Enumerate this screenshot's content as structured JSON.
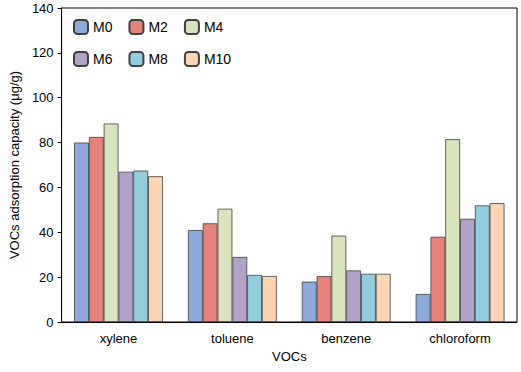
{
  "chart_data": {
    "type": "bar",
    "x_label": "VOCs",
    "y_label": "VOCs adsorption capacity (μg/g)",
    "categories": [
      "xylene",
      "toluene",
      "benzene",
      "chloroform"
    ],
    "series": [
      {
        "name": "M0",
        "color": "#8eaadb",
        "values": [
          80,
          41,
          18,
          12.5
        ]
      },
      {
        "name": "M2",
        "color": "#e6827c",
        "values": [
          82.5,
          44,
          20.5,
          38
        ]
      },
      {
        "name": "M4",
        "color": "#d7e4bd",
        "values": [
          88.5,
          50.5,
          38.5,
          81.5
        ]
      },
      {
        "name": "M6",
        "color": "#b3a2c7",
        "values": [
          67,
          29,
          23,
          46
        ]
      },
      {
        "name": "M8",
        "color": "#93cddd",
        "values": [
          67.5,
          21,
          21.5,
          52
        ]
      },
      {
        "name": "M10",
        "color": "#fcd5b5",
        "values": [
          65,
          20.5,
          21.5,
          53
        ]
      }
    ],
    "ylim": [
      0,
      140
    ],
    "yticks": [
      0,
      20,
      40,
      60,
      80,
      100,
      120,
      140
    ],
    "grid": false,
    "legend": "upper left"
  }
}
